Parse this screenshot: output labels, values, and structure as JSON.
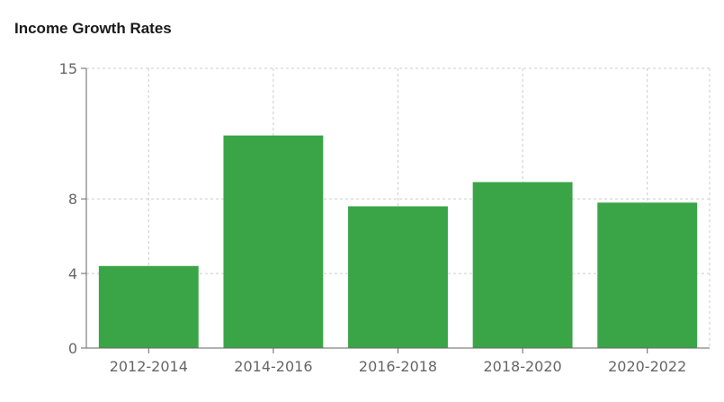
{
  "chart_data": {
    "type": "bar",
    "title": "Income Growth Rates",
    "xlabel": "",
    "ylabel": "",
    "categories": [
      "2012-2014",
      "2014-2016",
      "2016-2018",
      "2018-2020",
      "2020-2022"
    ],
    "values": [
      4.4,
      11.4,
      7.6,
      8.9,
      7.8
    ],
    "yticks": [
      0,
      4,
      8,
      15
    ],
    "ylim": [
      0,
      15
    ],
    "grid": true,
    "legend": "none",
    "colors": {
      "bar": "#3aa547",
      "grid": "#cccccc",
      "axis": "#666666"
    }
  }
}
